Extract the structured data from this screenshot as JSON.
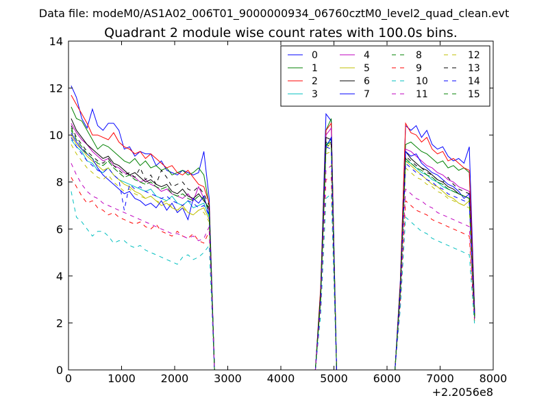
{
  "chart_data": {
    "type": "line",
    "suptitle": "Data file: modeM0/AS1A02_006T01_9000000934_06760cztM0_level2_quad_clean.evt",
    "title": "Quadrant 2 module wise count rates with 100.0s bins.",
    "xlabel": "",
    "ylabel": "",
    "x_offset_label": "+2.2056e8",
    "xlim": [
      0,
      8000
    ],
    "ylim": [
      0,
      14
    ],
    "x_ticks": [
      0,
      1000,
      2000,
      3000,
      4000,
      5000,
      6000,
      7000,
      8000
    ],
    "y_ticks": [
      0,
      2,
      4,
      6,
      8,
      10,
      12,
      14
    ],
    "legend_position": "top-right",
    "x": [
      50,
      150,
      250,
      350,
      450,
      550,
      650,
      750,
      850,
      950,
      1050,
      1150,
      1250,
      1350,
      1450,
      1550,
      1650,
      1750,
      1850,
      1950,
      2050,
      2150,
      2250,
      2350,
      2450,
      2550,
      2650,
      2750,
      2850,
      4550,
      4650,
      4750,
      4850,
      4950,
      5050,
      5150,
      6050,
      6150,
      6250,
      6350,
      6450,
      6550,
      6650,
      6750,
      6850,
      6950,
      7050,
      7150,
      7250,
      7350,
      7450,
      7550,
      7650
    ],
    "series": [
      {
        "name": "0",
        "color": "#0000ff",
        "dash": "solid",
        "values": [
          12.1,
          11.6,
          10.7,
          10.3,
          11.1,
          10.4,
          10.2,
          10.5,
          10.5,
          10.2,
          9.4,
          9.5,
          9.1,
          9.3,
          9.2,
          9.2,
          8.7,
          8.9,
          8.5,
          8.4,
          8.3,
          8.5,
          8.4,
          8.3,
          8.4,
          9.3,
          7.3,
          0,
          0,
          0,
          0,
          3.4,
          10.9,
          10.6,
          0,
          0,
          0,
          0,
          3.8,
          10.4,
          10.2,
          10.4,
          9.9,
          10.2,
          9.6,
          9.4,
          9.5,
          9.1,
          8.9,
          9.0,
          8.8,
          9.5,
          2.5
        ]
      },
      {
        "name": "1",
        "color": "#008000",
        "dash": "solid",
        "values": [
          11.2,
          10.7,
          10.6,
          10.2,
          9.8,
          9.4,
          9.6,
          9.5,
          9.3,
          9.1,
          8.9,
          8.8,
          9.0,
          8.7,
          8.9,
          8.6,
          8.7,
          8.5,
          8.6,
          8.3,
          8.4,
          8.5,
          8.3,
          8.4,
          8.6,
          8.3,
          7.0,
          0,
          0,
          0,
          0,
          3.2,
          10.2,
          10.7,
          0,
          0,
          0,
          0,
          3.5,
          9.6,
          9.7,
          9.5,
          9.3,
          9.2,
          9.0,
          8.8,
          8.9,
          8.6,
          8.7,
          8.5,
          8.6,
          8.4,
          2.4
        ]
      },
      {
        "name": "2",
        "color": "#ff0000",
        "dash": "solid",
        "values": [
          11.7,
          11.3,
          10.9,
          10.5,
          10.0,
          10.0,
          9.9,
          9.8,
          10.1,
          9.7,
          9.5,
          9.4,
          9.2,
          9.3,
          9.0,
          9.2,
          9.0,
          8.8,
          8.6,
          8.7,
          8.4,
          8.3,
          8.5,
          8.2,
          7.9,
          7.8,
          7.1,
          0,
          0,
          0,
          0,
          3.5,
          10.2,
          10.5,
          0,
          0,
          0,
          0,
          3.7,
          10.5,
          10.1,
          10.0,
          9.7,
          9.9,
          9.4,
          9.2,
          9.3,
          8.9,
          9.0,
          8.8,
          8.6,
          8.5,
          2.4
        ]
      },
      {
        "name": "3",
        "color": "#00bfbf",
        "dash": "solid",
        "values": [
          9.8,
          9.5,
          9.3,
          8.9,
          8.8,
          8.5,
          8.4,
          8.6,
          8.3,
          8.1,
          8.0,
          7.9,
          7.8,
          7.7,
          7.6,
          7.7,
          7.4,
          7.3,
          7.2,
          7.4,
          7.1,
          7.0,
          7.2,
          6.9,
          7.0,
          7.1,
          6.5,
          0,
          0,
          0,
          0,
          3.0,
          9.6,
          9.8,
          0,
          0,
          0,
          0,
          3.3,
          8.9,
          8.8,
          8.6,
          8.4,
          8.3,
          8.1,
          8.0,
          7.8,
          7.7,
          7.6,
          7.5,
          7.4,
          7.3,
          2.2
        ]
      },
      {
        "name": "4",
        "color": "#bf00bf",
        "dash": "solid",
        "values": [
          10.5,
          10.1,
          9.8,
          9.6,
          9.3,
          9.1,
          8.9,
          9.0,
          8.7,
          8.6,
          8.4,
          8.3,
          8.2,
          8.0,
          8.1,
          7.9,
          7.8,
          7.6,
          7.7,
          7.5,
          7.4,
          7.3,
          7.5,
          7.2,
          7.8,
          7.3,
          6.8,
          0,
          0,
          0,
          0,
          3.2,
          10.0,
          10.3,
          0,
          0,
          0,
          0,
          3.5,
          9.4,
          9.3,
          9.1,
          8.9,
          8.7,
          8.6,
          8.4,
          8.3,
          8.1,
          8.0,
          7.8,
          7.7,
          7.6,
          2.3
        ]
      },
      {
        "name": "5",
        "color": "#bfbf00",
        "dash": "solid",
        "values": [
          10.0,
          9.6,
          9.4,
          9.1,
          8.9,
          8.7,
          8.5,
          8.6,
          8.3,
          8.1,
          7.9,
          7.8,
          7.6,
          7.5,
          7.3,
          7.4,
          7.2,
          7.0,
          7.1,
          6.9,
          6.8,
          7.0,
          6.7,
          6.6,
          6.8,
          6.9,
          6.4,
          0,
          0,
          0,
          0,
          3.0,
          9.4,
          9.7,
          0,
          0,
          0,
          0,
          3.3,
          8.9,
          8.7,
          8.5,
          8.3,
          8.1,
          7.9,
          7.8,
          7.6,
          7.4,
          7.3,
          7.1,
          7.0,
          7.2,
          2.2
        ]
      },
      {
        "name": "6",
        "color": "#000000",
        "dash": "solid",
        "values": [
          10.7,
          10.2,
          9.9,
          9.6,
          9.4,
          9.2,
          9.0,
          9.1,
          8.8,
          8.7,
          8.5,
          8.3,
          8.4,
          8.2,
          8.0,
          8.1,
          7.9,
          7.8,
          7.9,
          7.6,
          7.5,
          7.7,
          7.4,
          7.3,
          7.5,
          7.2,
          6.9,
          0,
          0,
          0,
          0,
          3.3,
          9.9,
          9.8,
          0,
          0,
          0,
          0,
          3.5,
          9.3,
          9.0,
          8.8,
          8.6,
          8.5,
          8.3,
          8.1,
          8.0,
          7.8,
          7.7,
          7.5,
          7.4,
          7.3,
          2.3
        ]
      },
      {
        "name": "7",
        "color": "#0000ff",
        "dash": "solid",
        "values": [
          10.1,
          9.7,
          9.4,
          9.2,
          9.0,
          8.6,
          8.3,
          8.1,
          7.9,
          7.7,
          7.5,
          7.6,
          7.3,
          7.2,
          7.0,
          7.1,
          6.9,
          7.2,
          6.8,
          7.1,
          6.7,
          6.9,
          6.4,
          7.3,
          7.1,
          7.4,
          6.6,
          0,
          0,
          0,
          0,
          3.1,
          9.5,
          9.9,
          0,
          0,
          0,
          0,
          3.4,
          9.3,
          9.1,
          9.2,
          8.8,
          8.6,
          8.4,
          8.3,
          8.1,
          7.9,
          7.8,
          7.6,
          7.3,
          7.5,
          2.2
        ]
      },
      {
        "name": "8",
        "color": "#008000",
        "dash": "dashed",
        "values": [
          10.2,
          9.8,
          9.5,
          9.2,
          9.0,
          8.8,
          8.7,
          8.9,
          8.6,
          8.4,
          8.2,
          8.3,
          8.1,
          8.0,
          7.9,
          8.0,
          7.8,
          7.7,
          7.8,
          7.5,
          7.4,
          7.5,
          7.3,
          7.2,
          7.4,
          7.3,
          6.7,
          0,
          0,
          0,
          0,
          3.1,
          9.6,
          9.7,
          0,
          0,
          0,
          0,
          3.4,
          9.0,
          8.8,
          8.6,
          8.5,
          8.3,
          8.2,
          8.0,
          7.9,
          7.7,
          7.6,
          7.5,
          7.4,
          7.3,
          2.2
        ]
      },
      {
        "name": "9",
        "color": "#ff0000",
        "dash": "dashed",
        "values": [
          8.2,
          7.8,
          7.4,
          7.1,
          7.2,
          6.9,
          6.8,
          6.6,
          6.7,
          6.5,
          6.4,
          6.3,
          6.2,
          6.3,
          6.1,
          6.0,
          6.2,
          5.9,
          5.8,
          5.7,
          5.9,
          5.7,
          5.6,
          5.8,
          5.5,
          5.4,
          5.9,
          0,
          0,
          0,
          0,
          2.6,
          8.1,
          8.2,
          0,
          0,
          0,
          0,
          2.9,
          7.2,
          7.0,
          6.8,
          6.7,
          6.6,
          6.4,
          6.3,
          6.2,
          6.1,
          6.0,
          5.9,
          5.8,
          5.7,
          2.0
        ]
      },
      {
        "name": "10",
        "color": "#00bfbf",
        "dash": "dashed",
        "values": [
          7.6,
          6.5,
          6.3,
          6.0,
          5.7,
          5.9,
          5.9,
          5.7,
          5.4,
          5.5,
          5.5,
          5.3,
          5.2,
          5.3,
          5.1,
          5.0,
          4.9,
          4.8,
          4.7,
          4.6,
          4.5,
          4.8,
          4.9,
          4.7,
          4.8,
          5.0,
          5.3,
          0,
          0,
          0,
          0,
          2.3,
          7.3,
          7.5,
          0,
          0,
          0,
          0,
          2.6,
          6.5,
          6.3,
          6.1,
          5.9,
          5.8,
          5.6,
          5.5,
          5.4,
          5.3,
          5.2,
          5.1,
          5.0,
          4.9,
          1.9
        ]
      },
      {
        "name": "11",
        "color": "#bf00bf",
        "dash": "dashed",
        "values": [
          8.8,
          8.3,
          7.9,
          7.6,
          7.4,
          7.3,
          7.1,
          7.0,
          6.9,
          6.8,
          6.7,
          6.6,
          6.5,
          6.4,
          6.3,
          6.2,
          6.1,
          6.0,
          5.9,
          5.8,
          5.8,
          5.7,
          5.6,
          5.7,
          5.5,
          5.6,
          6.1,
          0,
          0,
          0,
          0,
          2.7,
          8.5,
          8.7,
          0,
          0,
          0,
          0,
          3.0,
          7.7,
          7.5,
          7.3,
          7.2,
          7.0,
          6.9,
          6.7,
          6.6,
          6.5,
          6.4,
          6.3,
          6.2,
          6.1,
          2.1
        ]
      },
      {
        "name": "12",
        "color": "#bfbf00",
        "dash": "dashed",
        "values": [
          9.6,
          9.2,
          8.9,
          8.6,
          8.4,
          8.2,
          8.1,
          8.3,
          8.0,
          7.8,
          7.6,
          7.7,
          7.5,
          7.4,
          7.3,
          7.4,
          7.2,
          7.1,
          7.2,
          6.9,
          6.8,
          6.9,
          6.7,
          6.6,
          6.8,
          6.7,
          6.3,
          0,
          0,
          0,
          0,
          2.9,
          9.2,
          9.3,
          0,
          0,
          0,
          0,
          3.2,
          8.6,
          8.4,
          8.2,
          8.1,
          7.9,
          7.8,
          7.6,
          7.5,
          7.3,
          7.2,
          7.1,
          7.0,
          6.9,
          2.1
        ]
      },
      {
        "name": "13",
        "color": "#000000",
        "dash": "dashed",
        "values": [
          10.4,
          9.9,
          9.6,
          9.3,
          9.1,
          8.9,
          8.8,
          9.0,
          8.7,
          8.5,
          8.3,
          8.4,
          8.2,
          8.6,
          8.1,
          8.3,
          7.9,
          8.5,
          8.2,
          7.8,
          7.9,
          8.0,
          7.7,
          7.6,
          7.8,
          7.5,
          7.0,
          0,
          0,
          0,
          0,
          3.2,
          9.7,
          9.6,
          0,
          0,
          0,
          0,
          3.5,
          9.1,
          8.9,
          8.7,
          8.6,
          8.4,
          8.3,
          8.1,
          8.0,
          8.2,
          7.9,
          7.7,
          7.6,
          7.5,
          2.3
        ]
      },
      {
        "name": "14",
        "color": "#0000ff",
        "dash": "dashed",
        "values": [
          9.9,
          9.5,
          9.2,
          8.9,
          8.7,
          8.5,
          8.4,
          8.6,
          8.3,
          8.1,
          6.8,
          7.9,
          7.7,
          7.8,
          7.6,
          7.5,
          7.4,
          7.3,
          7.4,
          7.2,
          7.1,
          7.0,
          7.2,
          7.1,
          6.9,
          7.0,
          6.6,
          0,
          0,
          0,
          0,
          3.0,
          9.5,
          9.4,
          0,
          0,
          0,
          0,
          3.3,
          8.8,
          8.6,
          8.4,
          8.3,
          8.1,
          8.0,
          7.8,
          7.7,
          7.5,
          7.4,
          7.3,
          7.2,
          7.1,
          2.2
        ]
      },
      {
        "name": "15",
        "color": "#008000",
        "dash": "dashed",
        "values": [
          10.3,
          9.8,
          9.5,
          9.2,
          9.0,
          8.8,
          8.7,
          8.9,
          8.6,
          8.4,
          8.2,
          8.3,
          8.1,
          8.0,
          7.9,
          8.0,
          7.8,
          7.7,
          7.8,
          7.5,
          7.4,
          7.5,
          7.3,
          7.2,
          7.4,
          7.3,
          6.8,
          0,
          0,
          0,
          0,
          3.1,
          9.6,
          9.5,
          0,
          0,
          0,
          0,
          3.4,
          9.0,
          8.8,
          8.6,
          8.5,
          8.3,
          8.2,
          8.0,
          7.9,
          7.7,
          7.6,
          7.5,
          7.4,
          7.3,
          2.2
        ]
      }
    ]
  }
}
